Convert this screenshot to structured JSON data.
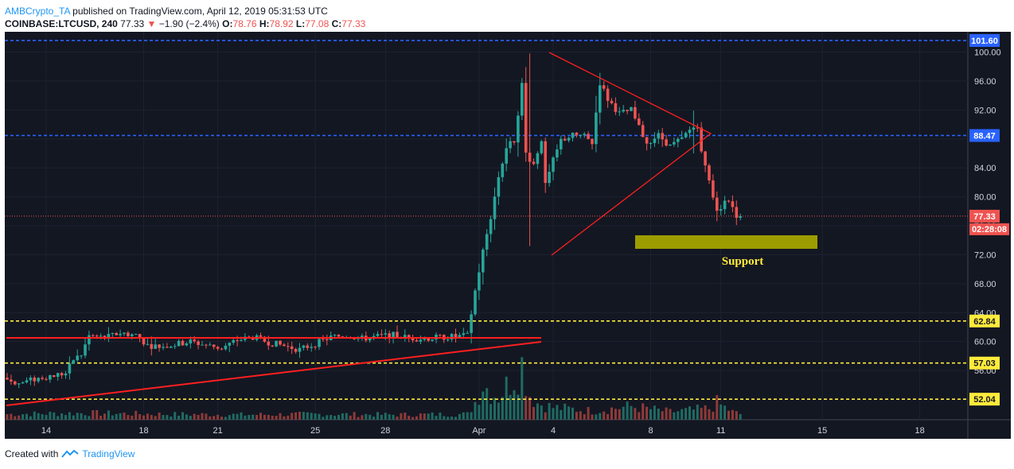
{
  "header": {
    "author": "AMBCrypto_TA",
    "published": "published on TradingView.com, April 12, 2019 05:31:53 UTC",
    "symbol": "COINBASE:LTCUSD, 240",
    "last": "77.33",
    "change": "−1.90 (−2.4%)",
    "o_label": "O:",
    "o": "78.76",
    "h_label": "H:",
    "h": "78.92",
    "l_label": "L:",
    "l": "77.08",
    "c_label": "C:",
    "c": "77.33"
  },
  "footer": {
    "created_with": "Created with",
    "brand": "TradingView"
  },
  "colors": {
    "background": "#131722",
    "up": "#26a69a",
    "down": "#ef5350",
    "blue_level": "#2962ff",
    "yellow_level": "#ffeb3b",
    "trendline": "#ff1f1f",
    "support_box": "#9c9c00",
    "support_text": "#ffeb3b"
  },
  "chart_data": {
    "type": "candlestick",
    "symbol": "COINBASE:LTCUSD",
    "interval": "240",
    "ylim": [
      49.2,
      102.8
    ],
    "y_ticks": [
      56,
      60,
      64,
      68,
      72,
      76,
      80,
      84,
      88,
      92,
      96,
      100
    ],
    "x_ticks": [
      "14",
      "18",
      "21",
      "25",
      "28",
      "Apr",
      "4",
      "8",
      "11",
      "15",
      "18"
    ],
    "horizontal_levels": [
      {
        "value": 101.6,
        "label": "101.60",
        "style": "blue"
      },
      {
        "value": 88.47,
        "label": "88.47",
        "style": "blue"
      },
      {
        "value": 62.84,
        "label": "62.84",
        "style": "yellow"
      },
      {
        "value": 57.03,
        "label": "57.03",
        "style": "yellow"
      },
      {
        "value": 52.04,
        "label": "52.04",
        "style": "yellow"
      }
    ],
    "last_price": {
      "value": 77.33,
      "label": "77.33",
      "countdown": "02:28:08"
    },
    "annotations": [
      {
        "type": "text",
        "text": "Support"
      },
      {
        "type": "zone",
        "name": "support",
        "from": 73.5,
        "to": 75.3
      }
    ],
    "price_path": [
      [
        0,
        55.0
      ],
      [
        4,
        54.2
      ],
      [
        8,
        54.8
      ],
      [
        12,
        55.3
      ],
      [
        16,
        55.6
      ],
      [
        18,
        57.5
      ],
      [
        20,
        58.2
      ],
      [
        22,
        60.8
      ],
      [
        26,
        60.5
      ],
      [
        30,
        61.2
      ],
      [
        34,
        60.9
      ],
      [
        37,
        59.5
      ],
      [
        40,
        59.3
      ],
      [
        44,
        59.6
      ],
      [
        48,
        60.0
      ],
      [
        52,
        59.5
      ],
      [
        56,
        59.1
      ],
      [
        60,
        60.2
      ],
      [
        64,
        60.6
      ],
      [
        68,
        59.9
      ],
      [
        72,
        59.4
      ],
      [
        76,
        58.9
      ],
      [
        80,
        59.7
      ],
      [
        84,
        60.6
      ],
      [
        88,
        60.9
      ],
      [
        92,
        60.4
      ],
      [
        96,
        60.7
      ],
      [
        100,
        60.9
      ],
      [
        104,
        60.5
      ],
      [
        108,
        60.4
      ],
      [
        112,
        60.6
      ],
      [
        116,
        60.7
      ],
      [
        119,
        60.8
      ],
      [
        121,
        67.0
      ],
      [
        123,
        72.5
      ],
      [
        125,
        77.2
      ],
      [
        127,
        82.8
      ],
      [
        129,
        86.8
      ],
      [
        131,
        87.8
      ],
      [
        133,
        95.5
      ],
      [
        134,
        86.0
      ],
      [
        136,
        84.5
      ],
      [
        138,
        88.0
      ],
      [
        139,
        81.5
      ],
      [
        141,
        85.0
      ],
      [
        143,
        87.8
      ],
      [
        146,
        88.5
      ],
      [
        149,
        88.3
      ],
      [
        151,
        87.5
      ],
      [
        153,
        95.8
      ],
      [
        155,
        93.5
      ],
      [
        158,
        91.5
      ],
      [
        161,
        92.0
      ],
      [
        163,
        89.5
      ],
      [
        165,
        87.5
      ],
      [
        168,
        88.5
      ],
      [
        171,
        87.0
      ],
      [
        174,
        88.0
      ],
      [
        176,
        89.2
      ],
      [
        178,
        90.0
      ],
      [
        179,
        86.0
      ],
      [
        181,
        82.5
      ],
      [
        183,
        77.8
      ],
      [
        185,
        79.5
      ],
      [
        187,
        78.8
      ],
      [
        188,
        77.33
      ]
    ],
    "volume_path": [
      [
        0,
        1.0
      ],
      [
        20,
        1.2
      ],
      [
        40,
        1.0
      ],
      [
        60,
        0.9
      ],
      [
        80,
        1.0
      ],
      [
        100,
        0.9
      ],
      [
        118,
        1.0
      ],
      [
        120,
        3.2
      ],
      [
        122,
        6.5
      ],
      [
        124,
        5.0
      ],
      [
        126,
        4.2
      ],
      [
        128,
        6.0
      ],
      [
        130,
        8.0
      ],
      [
        132,
        10.0
      ],
      [
        134,
        4.5
      ],
      [
        136,
        3.0
      ],
      [
        140,
        2.2
      ],
      [
        150,
        1.6
      ],
      [
        160,
        2.4
      ],
      [
        170,
        1.4
      ],
      [
        180,
        2.0
      ],
      [
        182,
        3.0
      ],
      [
        186,
        1.4
      ],
      [
        188,
        1.0
      ]
    ]
  }
}
